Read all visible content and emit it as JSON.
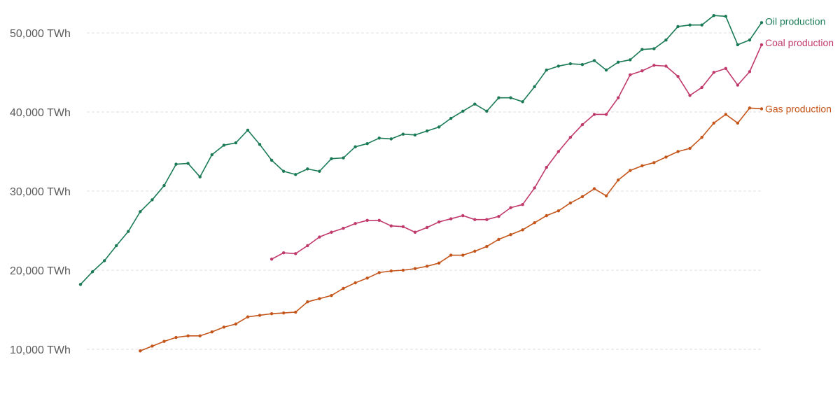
{
  "chart_data": {
    "type": "line",
    "title": "",
    "xlabel": "",
    "ylabel": "",
    "ylim": [
      5000,
      52000
    ],
    "y_ticks": [
      {
        "value": 10000,
        "label": "10,000 TWh"
      },
      {
        "value": 20000,
        "label": "20,000 TWh"
      },
      {
        "value": 30000,
        "label": "30,000 TWh"
      },
      {
        "value": 40000,
        "label": "40,000 TWh"
      },
      {
        "value": 50000,
        "label": "50,000 TWh"
      }
    ],
    "grid": true,
    "legend": "inline-right",
    "series": [
      {
        "name": "Oil production",
        "color": "#1a7a55",
        "points": [
          [
            1965,
            18200
          ],
          [
            1966,
            19800
          ],
          [
            1967,
            21200
          ],
          [
            1968,
            23100
          ],
          [
            1969,
            24900
          ],
          [
            1970,
            27400
          ],
          [
            1971,
            28900
          ],
          [
            1972,
            30700
          ],
          [
            1973,
            33400
          ],
          [
            1974,
            33500
          ],
          [
            1975,
            31800
          ],
          [
            1976,
            34600
          ],
          [
            1977,
            35800
          ],
          [
            1978,
            36100
          ],
          [
            1979,
            37700
          ],
          [
            1980,
            35900
          ],
          [
            1981,
            33900
          ],
          [
            1982,
            32500
          ],
          [
            1983,
            32100
          ],
          [
            1984,
            32800
          ],
          [
            1985,
            32500
          ],
          [
            1986,
            34100
          ],
          [
            1987,
            34200
          ],
          [
            1988,
            35600
          ],
          [
            1989,
            36000
          ],
          [
            1990,
            36700
          ],
          [
            1991,
            36600
          ],
          [
            1992,
            37200
          ],
          [
            1993,
            37100
          ],
          [
            1994,
            37600
          ],
          [
            1995,
            38100
          ],
          [
            1996,
            39200
          ],
          [
            1997,
            40100
          ],
          [
            1998,
            41000
          ],
          [
            1999,
            40100
          ],
          [
            2000,
            41800
          ],
          [
            2001,
            41800
          ],
          [
            2002,
            41300
          ],
          [
            2003,
            43200
          ],
          [
            2004,
            45300
          ],
          [
            2005,
            45800
          ],
          [
            2006,
            46100
          ],
          [
            2007,
            46000
          ],
          [
            2008,
            46500
          ],
          [
            2009,
            45300
          ],
          [
            2010,
            46300
          ],
          [
            2011,
            46600
          ],
          [
            2012,
            47900
          ],
          [
            2013,
            48000
          ],
          [
            2014,
            49100
          ],
          [
            2015,
            50800
          ],
          [
            2016,
            51000
          ],
          [
            2017,
            51000
          ],
          [
            2018,
            52200
          ],
          [
            2019,
            52100
          ],
          [
            2020,
            48500
          ],
          [
            2021,
            49100
          ],
          [
            2022,
            51300
          ]
        ]
      },
      {
        "name": "Coal production",
        "color": "#c0396b",
        "points": [
          [
            1981,
            21400
          ],
          [
            1982,
            22200
          ],
          [
            1983,
            22100
          ],
          [
            1984,
            23100
          ],
          [
            1985,
            24200
          ],
          [
            1986,
            24800
          ],
          [
            1987,
            25300
          ],
          [
            1988,
            25900
          ],
          [
            1989,
            26300
          ],
          [
            1990,
            26300
          ],
          [
            1991,
            25600
          ],
          [
            1992,
            25500
          ],
          [
            1993,
            24800
          ],
          [
            1994,
            25400
          ],
          [
            1995,
            26100
          ],
          [
            1996,
            26500
          ],
          [
            1997,
            26900
          ],
          [
            1998,
            26400
          ],
          [
            1999,
            26400
          ],
          [
            2000,
            26800
          ],
          [
            2001,
            27900
          ],
          [
            2002,
            28300
          ],
          [
            2003,
            30400
          ],
          [
            2004,
            33000
          ],
          [
            2005,
            35000
          ],
          [
            2006,
            36800
          ],
          [
            2007,
            38400
          ],
          [
            2008,
            39700
          ],
          [
            2009,
            39700
          ],
          [
            2010,
            41800
          ],
          [
            2011,
            44700
          ],
          [
            2012,
            45200
          ],
          [
            2013,
            45900
          ],
          [
            2014,
            45800
          ],
          [
            2015,
            44500
          ],
          [
            2016,
            42100
          ],
          [
            2017,
            43100
          ],
          [
            2018,
            45000
          ],
          [
            2019,
            45500
          ],
          [
            2020,
            43400
          ],
          [
            2021,
            45100
          ],
          [
            2022,
            48500
          ]
        ]
      },
      {
        "name": "Gas production",
        "color": "#c4551a",
        "points": [
          [
            1970,
            9800
          ],
          [
            1971,
            10400
          ],
          [
            1972,
            11000
          ],
          [
            1973,
            11500
          ],
          [
            1974,
            11700
          ],
          [
            1975,
            11700
          ],
          [
            1976,
            12200
          ],
          [
            1977,
            12800
          ],
          [
            1978,
            13200
          ],
          [
            1979,
            14100
          ],
          [
            1980,
            14300
          ],
          [
            1981,
            14500
          ],
          [
            1982,
            14600
          ],
          [
            1983,
            14700
          ],
          [
            1984,
            16000
          ],
          [
            1985,
            16400
          ],
          [
            1986,
            16800
          ],
          [
            1987,
            17700
          ],
          [
            1988,
            18400
          ],
          [
            1989,
            19000
          ],
          [
            1990,
            19700
          ],
          [
            1991,
            19900
          ],
          [
            1992,
            20000
          ],
          [
            1993,
            20200
          ],
          [
            1994,
            20500
          ],
          [
            1995,
            20900
          ],
          [
            1996,
            21900
          ],
          [
            1997,
            21900
          ],
          [
            1998,
            22400
          ],
          [
            1999,
            23000
          ],
          [
            2000,
            23900
          ],
          [
            2001,
            24500
          ],
          [
            2002,
            25100
          ],
          [
            2003,
            26000
          ],
          [
            2004,
            26900
          ],
          [
            2005,
            27500
          ],
          [
            2006,
            28500
          ],
          [
            2007,
            29300
          ],
          [
            2008,
            30300
          ],
          [
            2009,
            29400
          ],
          [
            2010,
            31400
          ],
          [
            2011,
            32600
          ],
          [
            2012,
            33200
          ],
          [
            2013,
            33600
          ],
          [
            2014,
            34300
          ],
          [
            2015,
            35000
          ],
          [
            2016,
            35400
          ],
          [
            2017,
            36800
          ],
          [
            2018,
            38600
          ],
          [
            2019,
            39700
          ],
          [
            2020,
            38600
          ],
          [
            2021,
            40500
          ],
          [
            2022,
            40400
          ]
        ]
      }
    ]
  }
}
